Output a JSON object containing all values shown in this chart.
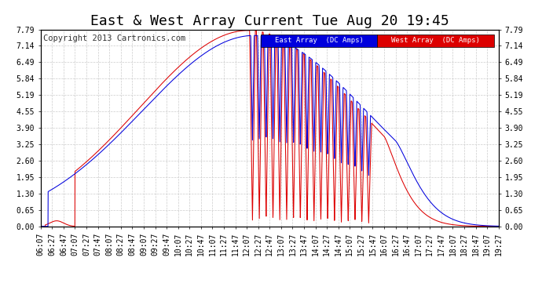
{
  "title": "East & West Array Current Tue Aug 20 19:45",
  "copyright": "Copyright 2013 Cartronics.com",
  "legend_east": "East Array  (DC Amps)",
  "legend_west": "West Array  (DC Amps)",
  "east_color": "#0000dd",
  "west_color": "#dd0000",
  "bg_color": "#ffffff",
  "grid_color": "#cccccc",
  "ylim": [
    0.0,
    7.79
  ],
  "yticks": [
    0.0,
    0.65,
    1.3,
    1.95,
    2.6,
    3.25,
    3.9,
    4.55,
    5.19,
    5.84,
    6.49,
    7.14,
    7.79
  ],
  "xtick_labels": [
    "06:07",
    "06:27",
    "06:47",
    "07:07",
    "07:27",
    "07:47",
    "08:07",
    "08:27",
    "08:47",
    "09:07",
    "09:27",
    "09:47",
    "10:07",
    "10:27",
    "10:47",
    "11:07",
    "11:27",
    "11:47",
    "12:07",
    "12:27",
    "12:47",
    "13:07",
    "13:27",
    "13:47",
    "14:07",
    "14:27",
    "14:47",
    "15:07",
    "15:27",
    "15:47",
    "16:07",
    "16:27",
    "16:47",
    "17:07",
    "17:27",
    "17:47",
    "18:07",
    "18:27",
    "18:47",
    "19:07",
    "19:27"
  ],
  "title_fontsize": 13,
  "tick_fontsize": 7,
  "copyright_fontsize": 7.5
}
